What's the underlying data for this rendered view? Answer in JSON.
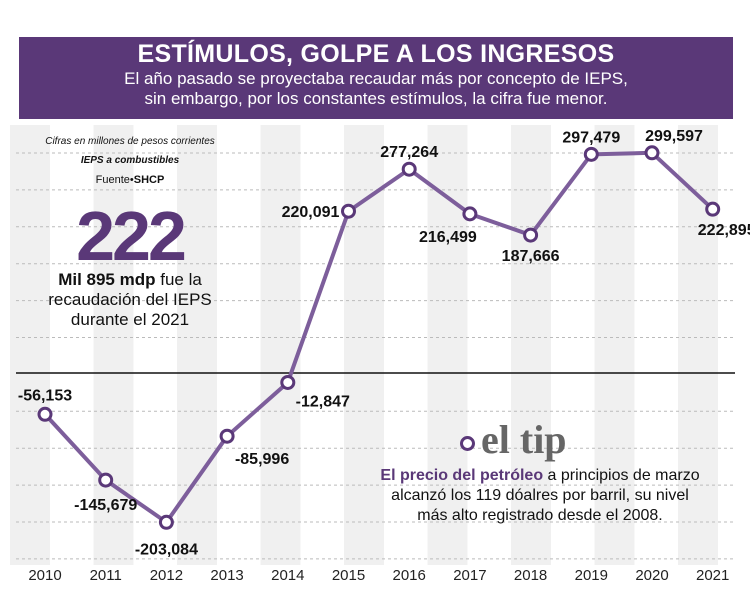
{
  "header": {
    "title": "ESTÍMULOS, GOLPE A LOS INGRESOS",
    "subtitle_line1": "El año pasado se proyectaba recaudar más por concepto de IEPS,",
    "subtitle_line2": "sin embargo, por los constantes estímulos, la cifra fue menor."
  },
  "notes": {
    "units": "Cifras en millones de pesos corrientes",
    "series_label": "IEPS a combustibles",
    "source_prefix": "Fuente•",
    "source": "SHCP"
  },
  "highlight": {
    "big_number": "222",
    "text_bold": "Mil 895 mdp",
    "text_rest1": " fue la",
    "text_line2": "recaudación del IEPS",
    "text_line3": "durante el 2021"
  },
  "tip": {
    "logo": "el tip",
    "bold": "El precio del petróleo",
    "rest1": " a principios de marzo",
    "line2": "alcanzó los 119 dóalres por barril, su nivel",
    "line3": "más alto registrado desde el 2008."
  },
  "colors": {
    "accent": "#5a3878",
    "line": "#7d5e9b",
    "zero_line": "#111111"
  },
  "chart_data": {
    "type": "line",
    "categories": [
      "2010",
      "2011",
      "2012",
      "2013",
      "2014",
      "2015",
      "2016",
      "2017",
      "2018",
      "2019",
      "2020",
      "2021"
    ],
    "values": [
      -56153,
      -145679,
      -203084,
      -85996,
      -12847,
      220091,
      277264,
      216499,
      187666,
      297479,
      299597,
      222895
    ],
    "labels": [
      "-56,153",
      "-145,679",
      "-203,084",
      "-85,996",
      "-12,847",
      "220,091",
      "277,264",
      "216,499",
      "187,666",
      "297,479",
      "299,597",
      "222,895"
    ],
    "ylim": [
      -250000,
      300000
    ],
    "grid": true
  }
}
